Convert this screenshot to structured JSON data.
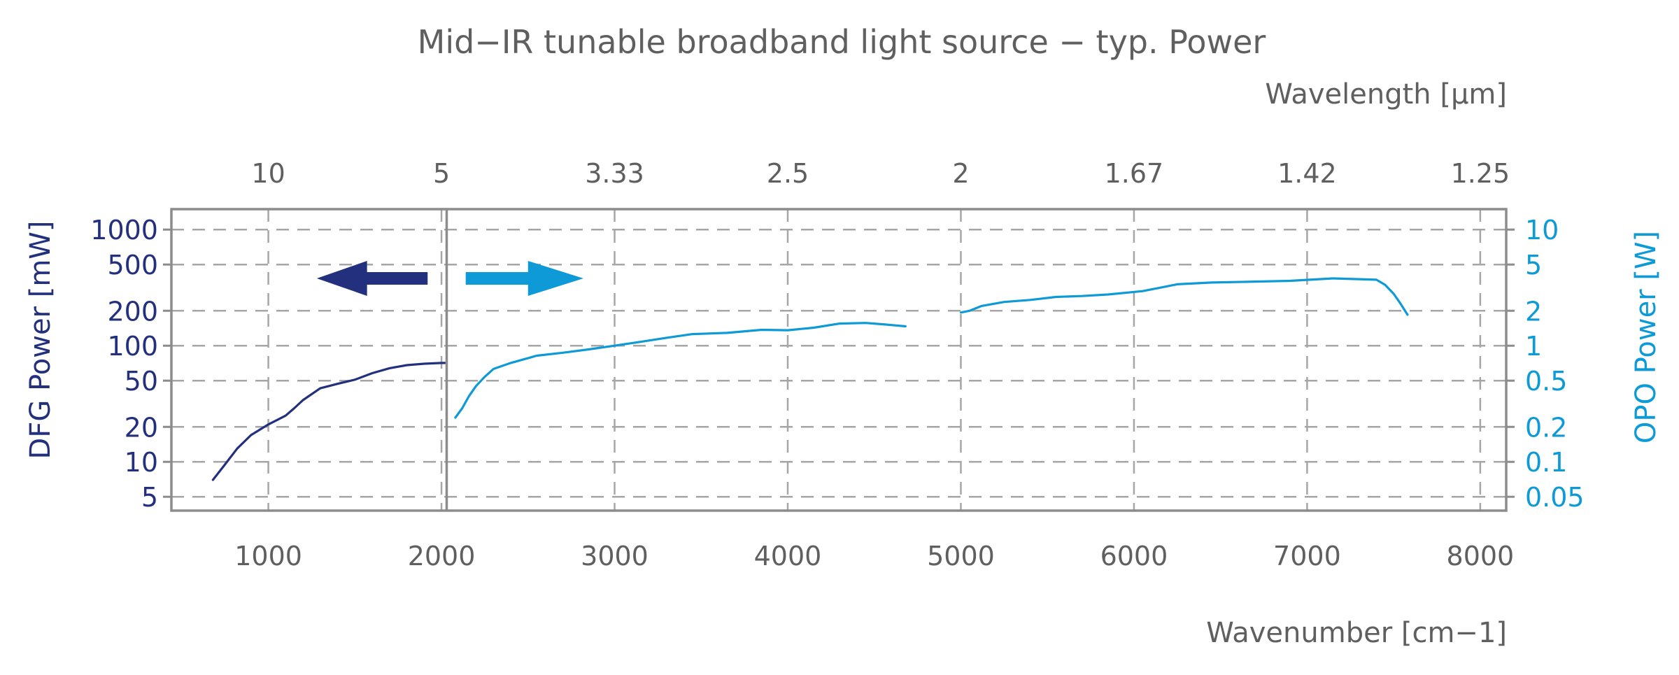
{
  "chart_data": {
    "type": "line",
    "title": "Mid−IR tunable broadband light source − typ. Power",
    "x_bottom": {
      "label": "Wavenumber [cm−1]",
      "ticks": [
        1000,
        2000,
        3000,
        4000,
        5000,
        6000,
        7000,
        8000
      ],
      "tick_labels": [
        "1000",
        "2000",
        "3000",
        "4000",
        "5000",
        "6000",
        "7000",
        "8000"
      ],
      "range": [
        440,
        8150
      ]
    },
    "x_top": {
      "label": "Wavelength [µm]",
      "ticks_wavenumber": [
        1000,
        2000,
        3000,
        4000,
        5000,
        6000,
        7000,
        8000
      ],
      "tick_labels": [
        "10",
        "5",
        "3.33",
        "2.5",
        "2",
        "1.67",
        "1.42",
        "1.25"
      ]
    },
    "y_left": {
      "label": "DFG Power [mW]",
      "scale": "log",
      "range": [
        3.8,
        1500
      ],
      "ticks": [
        5,
        10,
        20,
        50,
        100,
        200,
        500,
        1000
      ],
      "tick_labels": [
        "5",
        "10",
        "20",
        "50",
        "100",
        "200",
        "500",
        "1000"
      ],
      "color": "#23307e"
    },
    "y_right": {
      "label": "OPO Power [W]",
      "scale": "log",
      "range": [
        0.038,
        15
      ],
      "ticks": [
        0.05,
        0.1,
        0.2,
        0.5,
        1,
        2,
        5,
        10
      ],
      "tick_labels": [
        "0.05",
        "0.1",
        "0.2",
        "0.5",
        "1",
        "2",
        "5",
        "10"
      ],
      "color": "#0d9ad6"
    },
    "divider_x": 2030,
    "grid": true,
    "series": [
      {
        "axis": "left",
        "color": "#23307e",
        "points": [
          [
            680,
            7
          ],
          [
            750,
            9.5
          ],
          [
            820,
            13
          ],
          [
            900,
            17
          ],
          [
            1000,
            21
          ],
          [
            1100,
            25
          ],
          [
            1150,
            29
          ],
          [
            1200,
            34
          ],
          [
            1300,
            43
          ],
          [
            1400,
            47
          ],
          [
            1500,
            51
          ],
          [
            1600,
            58
          ],
          [
            1700,
            64
          ],
          [
            1800,
            68
          ],
          [
            1900,
            70
          ],
          [
            2000,
            71
          ],
          [
            2020,
            71
          ]
        ]
      },
      {
        "axis": "right",
        "color": "#0d9ad6",
        "points": [
          [
            2080,
            0.24
          ],
          [
            2120,
            0.29
          ],
          [
            2160,
            0.37
          ],
          [
            2200,
            0.45
          ],
          [
            2250,
            0.54
          ],
          [
            2300,
            0.63
          ],
          [
            2400,
            0.71
          ],
          [
            2550,
            0.82
          ],
          [
            2700,
            0.87
          ],
          [
            2850,
            0.93
          ],
          [
            3000,
            1.0
          ],
          [
            3150,
            1.08
          ],
          [
            3300,
            1.17
          ],
          [
            3450,
            1.26
          ],
          [
            3650,
            1.29
          ],
          [
            3850,
            1.37
          ],
          [
            4000,
            1.36
          ],
          [
            4150,
            1.43
          ],
          [
            4300,
            1.55
          ],
          [
            4450,
            1.57
          ],
          [
            4550,
            1.53
          ],
          [
            4680,
            1.47
          ]
        ]
      },
      {
        "axis": "right",
        "color": "#0d9ad6",
        "points": [
          [
            5000,
            1.93
          ],
          [
            5050,
            2.0
          ],
          [
            5120,
            2.2
          ],
          [
            5250,
            2.38
          ],
          [
            5400,
            2.48
          ],
          [
            5550,
            2.63
          ],
          [
            5700,
            2.68
          ],
          [
            5850,
            2.76
          ],
          [
            6050,
            2.95
          ],
          [
            6250,
            3.38
          ],
          [
            6450,
            3.5
          ],
          [
            6650,
            3.55
          ],
          [
            6900,
            3.62
          ],
          [
            7150,
            3.8
          ],
          [
            7400,
            3.7
          ],
          [
            7450,
            3.35
          ],
          [
            7500,
            2.8
          ],
          [
            7540,
            2.3
          ],
          [
            7580,
            1.85
          ]
        ]
      }
    ],
    "annotations": [
      {
        "shape": "arrow-left",
        "color": "#23307e",
        "meaning": "left axis applies"
      },
      {
        "shape": "arrow-right",
        "color": "#0d9ad6",
        "meaning": "right axis applies"
      }
    ]
  }
}
